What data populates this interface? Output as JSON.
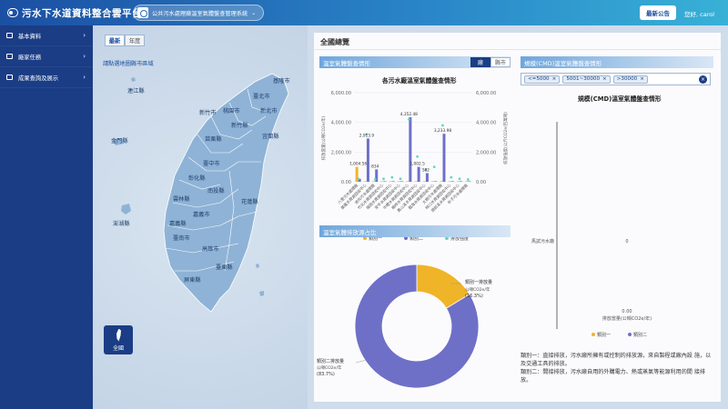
{
  "header": {
    "title": "污水下水道資料整合雲平台",
    "system_select": "公共污水處理廠溫室氣體盤查管理系統",
    "announcement_button": "最新公告",
    "greeting": "您好, carol"
  },
  "sidebar": {
    "items": [
      {
        "label": "基本資料"
      },
      {
        "label": "廠家任務"
      },
      {
        "label": "成果查詢及展示"
      }
    ]
  },
  "map_panel": {
    "tabs": [
      {
        "label": "最新"
      },
      {
        "label": "年度"
      }
    ],
    "hint": "請點選地圖縣市區域",
    "counties": [
      "基隆市",
      "臺北市",
      "新北市",
      "桃園市",
      "新竹縣",
      "新竹市",
      "苗栗縣",
      "臺中市",
      "彰化縣",
      "南投縣",
      "雲林縣",
      "嘉義縣",
      "嘉義市",
      "臺南市",
      "高雄市",
      "屏東縣",
      "宜蘭縣",
      "花蓮縣",
      "臺東縣",
      "澎湖縣",
      "金門縣",
      "連江縣"
    ],
    "all_button": "全國"
  },
  "dashboard": {
    "title": "全國總覽",
    "section1": {
      "header": "溫室氣體盤查情形",
      "toggles": [
        {
          "label": "廠"
        },
        {
          "label": "縣市"
        }
      ],
      "chart_title": "各污水廠溫室氣體盤查情形"
    },
    "section2": {
      "header": "規模(CMD)溫室氣體盤查情形",
      "filters": [
        "<=5000",
        "5001~30000",
        ">30000"
      ],
      "clear_icon": "close-icon",
      "chart_title": "規模(CMD)溫室氣體盤查情形"
    },
    "section3": {
      "header": "溫室氣體排放源占比"
    },
    "note_lines": [
      "類別一：直接排放，污水廠所擁有或控制的排放源，來自製程或廠內設 施，以及交通工具的排放。",
      "類別二：間接排放，污水廠自用的外購電力、熱或蒸氣等能源利用的間 接排放。"
    ]
  },
  "chart_data": [
    {
      "type": "bar",
      "title": "各污水廠溫室氣體盤查情形",
      "categories": [
        "八里污水處理廠",
        "基隆水資源回收中心",
        "迪化污水處理廠",
        "竹北水資源回收中心",
        "福田水資源回收中心",
        "安平水資源回收中心",
        "中壢水資源回收中心",
        "楠梓水資源回收中心",
        "鳳山溪水資源回收中心",
        "臨海水資源回收中心",
        "大樹污水處理廠",
        "林口水資源回收中心",
        "頭前溪水資源回收中心",
        "朴子污水處理廠"
      ],
      "ylabel": "排放當量(公噸CO2e/年)",
      "ylabel_right": "排放強度(公斤CO2e/百萬噸)",
      "ylim": [
        0,
        6000
      ],
      "ylim_right": [
        0,
        6000
      ],
      "yticks": [
        "6,000.00",
        "4,000.00",
        "2,000.00",
        "0.00"
      ],
      "yticks_right": [
        "6,000.00",
        "4,000.00",
        "2,000.00",
        "0.00"
      ],
      "series": [
        {
          "name": "類別一",
          "color": "#f0b429",
          "values": [
            1004.56,
            0,
            0,
            0,
            0,
            0,
            0,
            0,
            0,
            0,
            0,
            0,
            0,
            0
          ]
        },
        {
          "name": "類別二",
          "color": "#6e70c7",
          "values": [
            200,
            2913.9,
            834,
            0,
            0,
            0,
            4352.48,
            1002.5,
            582,
            0,
            3233.98,
            0,
            0,
            0
          ]
        },
        {
          "name": "排放強度",
          "color": "#5ed8c8",
          "values": [
            200,
            3200,
            150,
            200,
            300,
            200,
            4200,
            1700,
            800,
            1000,
            3800,
            300,
            200,
            150
          ]
        }
      ],
      "data_labels": [
        "1,004.56",
        "2,913.9",
        "834",
        "4,352.48",
        "1,002.5",
        "582",
        "3,233.98"
      ],
      "legend": "bottom"
    },
    {
      "type": "bar",
      "title": "規模(CMD)溫室氣體盤查情形",
      "categories": [
        "馬試污水廠"
      ],
      "xlabel": "排放當量(公噸CO2e/年)",
      "series": [
        {
          "name": "類別一",
          "color": "#f0b429",
          "values": [
            0
          ]
        },
        {
          "name": "類別二",
          "color": "#6e70c7",
          "values": [
            0
          ]
        }
      ],
      "data_labels": [
        "0",
        "0.00"
      ],
      "legend": "bottom"
    },
    {
      "type": "pie",
      "title": "溫室氣體排放源占比",
      "categories": [
        "類別一排放量",
        "類別二排放量"
      ],
      "values": [
        16.3,
        83.7
      ],
      "value_labels": [
        "(16.3%)",
        "(83.7%)"
      ],
      "unit": "公噸CO2e/年",
      "colors": [
        "#f0b429",
        "#6e70c7"
      ]
    }
  ]
}
